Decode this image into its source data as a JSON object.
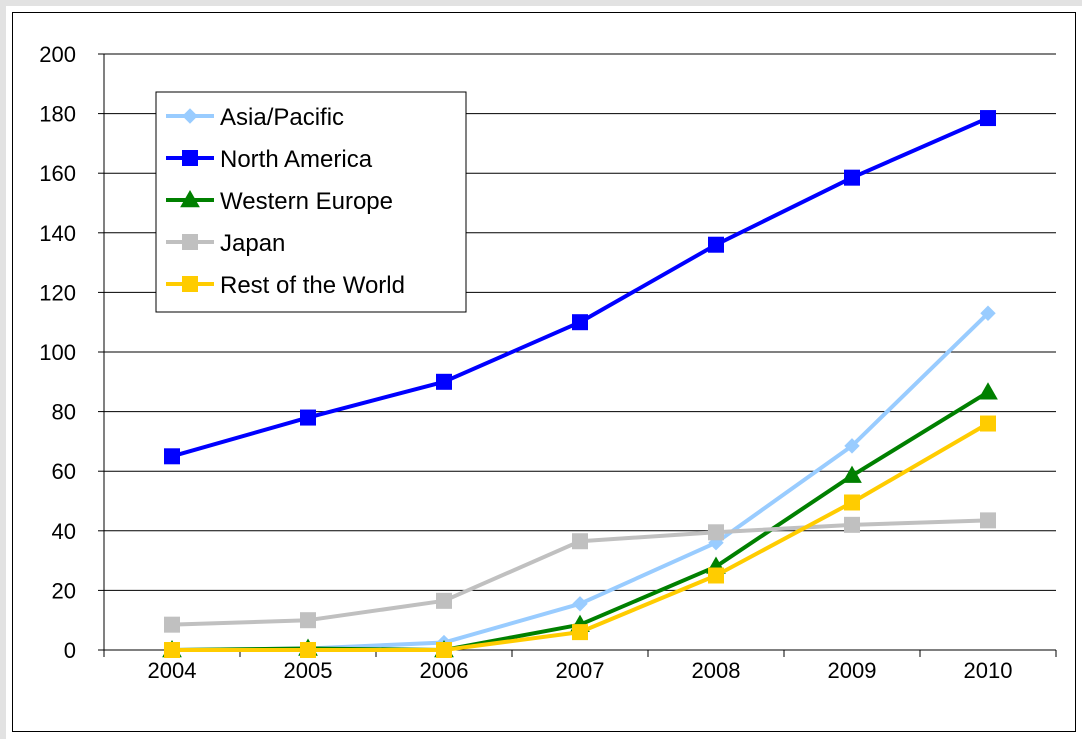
{
  "chart_data": {
    "type": "line",
    "title": "",
    "xlabel": "",
    "ylabel": "",
    "categories": [
      "2004",
      "2005",
      "2006",
      "2007",
      "2008",
      "2009",
      "2010"
    ],
    "ylim": [
      0,
      200
    ],
    "yticks": [
      0,
      20,
      40,
      60,
      80,
      100,
      120,
      140,
      160,
      180,
      200
    ],
    "grid": "horizontal",
    "legend_position": "top-left",
    "series": [
      {
        "name": "Asia/Pacific",
        "color": "#99ccff",
        "marker": "diamond",
        "values": [
          0,
          0.5,
          2.5,
          15.5,
          36,
          68.5,
          113
        ]
      },
      {
        "name": "North America",
        "color": "#0000ff",
        "marker": "square",
        "values": [
          65,
          78,
          90,
          110,
          136,
          158.5,
          178.5
        ]
      },
      {
        "name": "Western Europe",
        "color": "#008000",
        "marker": "triangle",
        "values": [
          0,
          0.5,
          0,
          8.5,
          28,
          58.5,
          86.5
        ]
      },
      {
        "name": "Japan",
        "color": "#c0c0c0",
        "marker": "square",
        "values": [
          8.5,
          10,
          16.5,
          36.5,
          39.5,
          42,
          43.5
        ]
      },
      {
        "name": "Rest of the World",
        "color": "#ffcc00",
        "marker": "square",
        "values": [
          0,
          0,
          0,
          6,
          25,
          49.5,
          76
        ]
      }
    ]
  }
}
